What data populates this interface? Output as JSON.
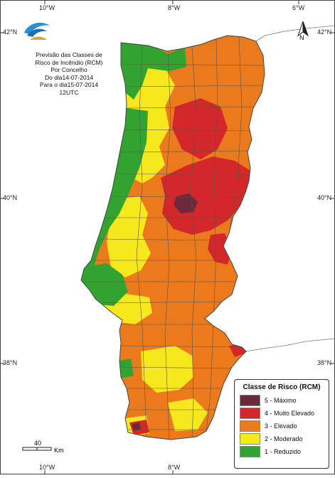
{
  "map": {
    "title_lines": [
      "Previsão das Classes de",
      "Risco de Incêndio (RCM)",
      "Por Concelho",
      "Do dia14-07-2014",
      "Para o dia15-07-2014",
      "12UTC"
    ],
    "coordinates": {
      "top": [
        "10°W",
        "8°W",
        "6°W"
      ],
      "bottom": [
        "10°W",
        "8°W",
        "6°W"
      ],
      "left": [
        "42°N",
        "40°N",
        "38°N"
      ],
      "right": [
        "42°N",
        "40°N",
        "38°N"
      ]
    },
    "north_label": "N",
    "scale": {
      "value": "40",
      "unit": "Km"
    },
    "colors": {
      "background": "#ffffff",
      "land_neighbour": "#ffffff",
      "sea": "#ffffff",
      "border": "#555555"
    }
  },
  "legend": {
    "title": "Classe de Risco (RCM)",
    "items": [
      {
        "label": "5 - Máximo",
        "color": "#6b2a3a"
      },
      {
        "label": "4 - Muito Elevado",
        "color": "#d3272a"
      },
      {
        "label": "3 - Elevado",
        "color": "#ea7a1c"
      },
      {
        "label": "2 - Moderado",
        "color": "#f7e81e"
      },
      {
        "label": "1 - Reduzido",
        "color": "#33a32f"
      }
    ]
  }
}
